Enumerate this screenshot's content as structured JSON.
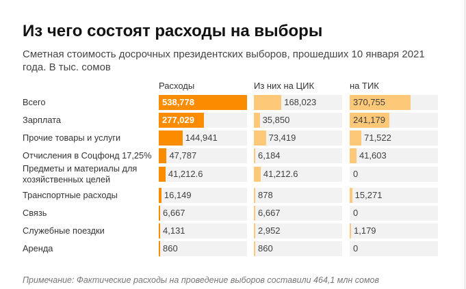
{
  "colors": {
    "primary": "#FB8C00",
    "secondary": "#FDC877",
    "track": "#F2F2F2"
  },
  "chart_data": {
    "type": "bar",
    "orientation": "horizontal",
    "title": "Из чего состоят расходы на выборы",
    "subtitle": "Сметная стоимость досрочных президентских выборов, прошедших 10 января 2021 года. В тыс. сомов",
    "note": "Примечание: Фактические расходы на проведение выборов составили 464,1 млн сомов",
    "xlim": [
      0,
      538778
    ],
    "grid": false,
    "categories": [
      "Всего",
      "Зарплата",
      "Прочие товары и услуги",
      "Отчисления в Соцфонд 17,25%",
      "Предметы и материалы для хозяйственных целей",
      "Транспортные расходы",
      "Связь",
      "Служебные поездки",
      "Аренда"
    ],
    "series": [
      {
        "name": "Расходы",
        "color": "primary",
        "values": [
          538778,
          277029,
          144941,
          47787,
          41212.6,
          16149,
          6667,
          4131,
          860
        ],
        "labels": [
          "538,778",
          "277,029",
          "144,941",
          "47,787",
          "41,212.6",
          "16,149",
          "6,667",
          "4,131",
          "860"
        ]
      },
      {
        "name": "Из них на ЦИК",
        "color": "secondary",
        "values": [
          168023,
          35850,
          73419,
          6184,
          41212.6,
          878,
          6667,
          2952,
          860
        ],
        "labels": [
          "168,023",
          "35,850",
          "73,419",
          "6,184",
          "41,212.6",
          "878",
          "6,667",
          "2,952",
          "860"
        ]
      },
      {
        "name": "на ТИК",
        "color": "secondary",
        "values": [
          370755,
          241179,
          71522,
          41603,
          0,
          15271,
          0,
          1179,
          0
        ],
        "labels": [
          "370,755",
          "241,179",
          "71,522",
          "41,603",
          "0",
          "15,271",
          "0",
          "1,179",
          "0"
        ]
      }
    ]
  }
}
